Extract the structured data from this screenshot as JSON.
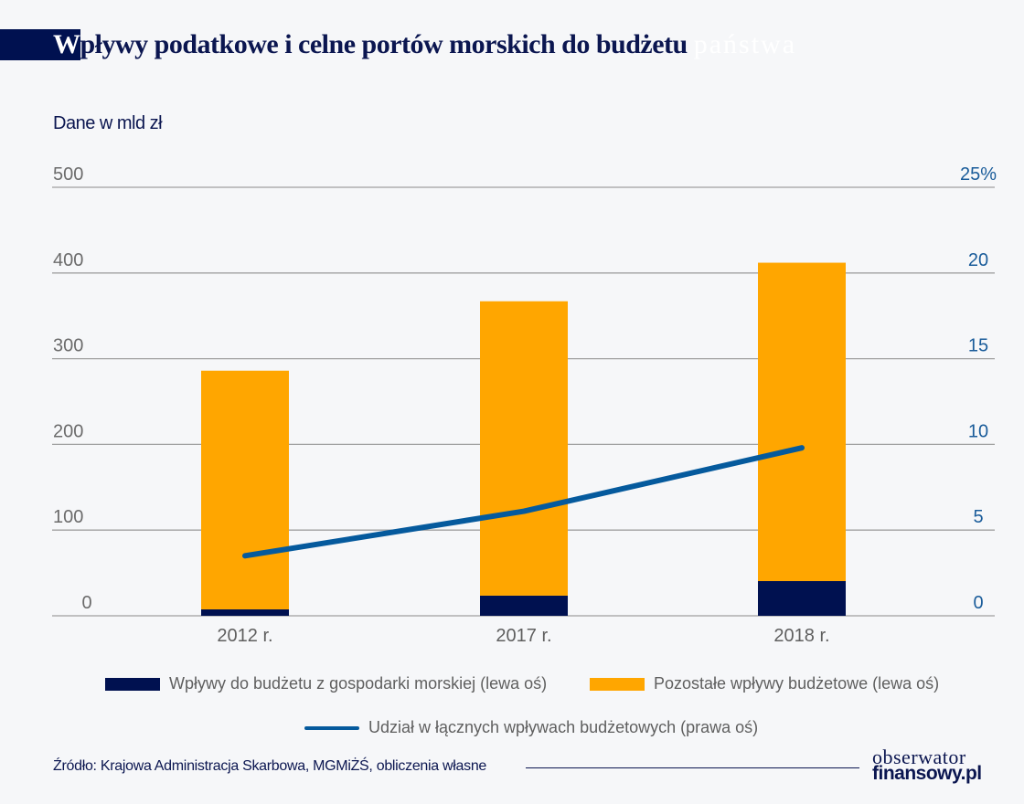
{
  "header": {
    "title_first_letter": "W",
    "title_rest": "pływy podatkowe i celne portów morskich do budżetu",
    "title_hidden_word": "państwa"
  },
  "unit_label": "Dane w mld zł",
  "colors": {
    "maritime": "#001150",
    "other": "#ffa600",
    "share_line": "#055a9d",
    "grid": "#a0a0a0",
    "left_axis_text": "#6b6b6b",
    "right_axis_text": "#1a5c9a",
    "title": "#0b1650"
  },
  "chart_data": {
    "type": "bar",
    "stacked": true,
    "title": "Wpływy podatkowe i celne portów morskich do budżetu państwa",
    "subtitle": "Dane w mld zł",
    "categories": [
      "2012 r.",
      "2017 r.",
      "2018 r."
    ],
    "series": [
      {
        "name": "Wpływy do budżetu z gospodarki morskiej (lewa oś)",
        "type": "bar",
        "axis": "left",
        "values": [
          7.5,
          23.5,
          40.5
        ]
      },
      {
        "name": "Pozostałe wpływy budżetowe (lewa oś)",
        "type": "bar",
        "axis": "left",
        "values": [
          278.5,
          343.5,
          371.5
        ]
      },
      {
        "name": "Udział w łącznych wpływach budżetowych (prawa oś)",
        "type": "line",
        "axis": "right",
        "values": [
          3.5,
          6.1,
          9.8
        ]
      }
    ],
    "left_axis": {
      "ylim": [
        0,
        500
      ],
      "ticks": [
        0,
        100,
        200,
        300,
        400,
        500
      ],
      "tick_labels": [
        "0",
        "100",
        "200",
        "300",
        "400",
        "500"
      ]
    },
    "right_axis": {
      "ylim": [
        0,
        25
      ],
      "ticks": [
        0,
        5,
        10,
        15,
        20,
        25
      ],
      "tick_labels": [
        "0",
        "5",
        "10",
        "15",
        "20",
        "25%"
      ]
    },
    "xlabel": "",
    "ylabel": "Dane w mld zł",
    "grid": true,
    "legend_position": "bottom"
  },
  "legend": {
    "items": [
      {
        "label": "Wpływy do budżetu z gospodarki morskiej (lewa oś)"
      },
      {
        "label": "Pozostałe wpływy budżetowe (lewa oś)"
      },
      {
        "label": "Udział w łącznych wpływach budżetowych (prawa oś)"
      }
    ]
  },
  "footer": {
    "source": "Źródło: Krajowa Administracja Skarbowa, MGMiŻŚ, obliczenia własne",
    "logo_top": "obserwator",
    "logo_bottom": "finansowy.pl"
  }
}
